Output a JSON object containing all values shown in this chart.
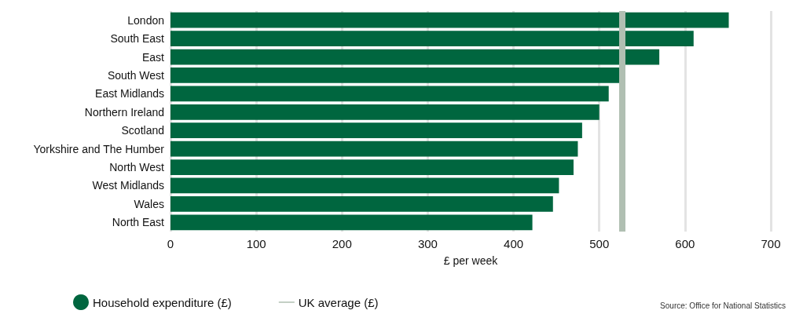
{
  "chart_data": {
    "type": "bar",
    "orientation": "horizontal",
    "categories": [
      "London",
      "South East",
      "East",
      "South West",
      "East Midlands",
      "Northern Ireland",
      "Scotland",
      "Yorkshire and The Humber",
      "North West",
      "West Midlands",
      "Wales",
      "North East"
    ],
    "series": [
      {
        "name": "Household expenditure (£)",
        "color": "#00663f",
        "values": [
          651,
          610,
          570,
          524,
          511,
          500,
          480,
          475,
          470,
          453,
          446,
          422
        ]
      }
    ],
    "xlim": [
      0,
      700
    ],
    "xticks": [
      0,
      100,
      200,
      300,
      400,
      500,
      600,
      700
    ],
    "xlabel": "£ per week",
    "ref_lines": [
      {
        "axis": "x",
        "value": 527,
        "label": "UK average (£)",
        "color": "#b0bfb2"
      }
    ],
    "grid": "x",
    "legend": "bottom left",
    "marker": "circle",
    "annotations": [
      "Source: Office for National Statistics"
    ]
  }
}
